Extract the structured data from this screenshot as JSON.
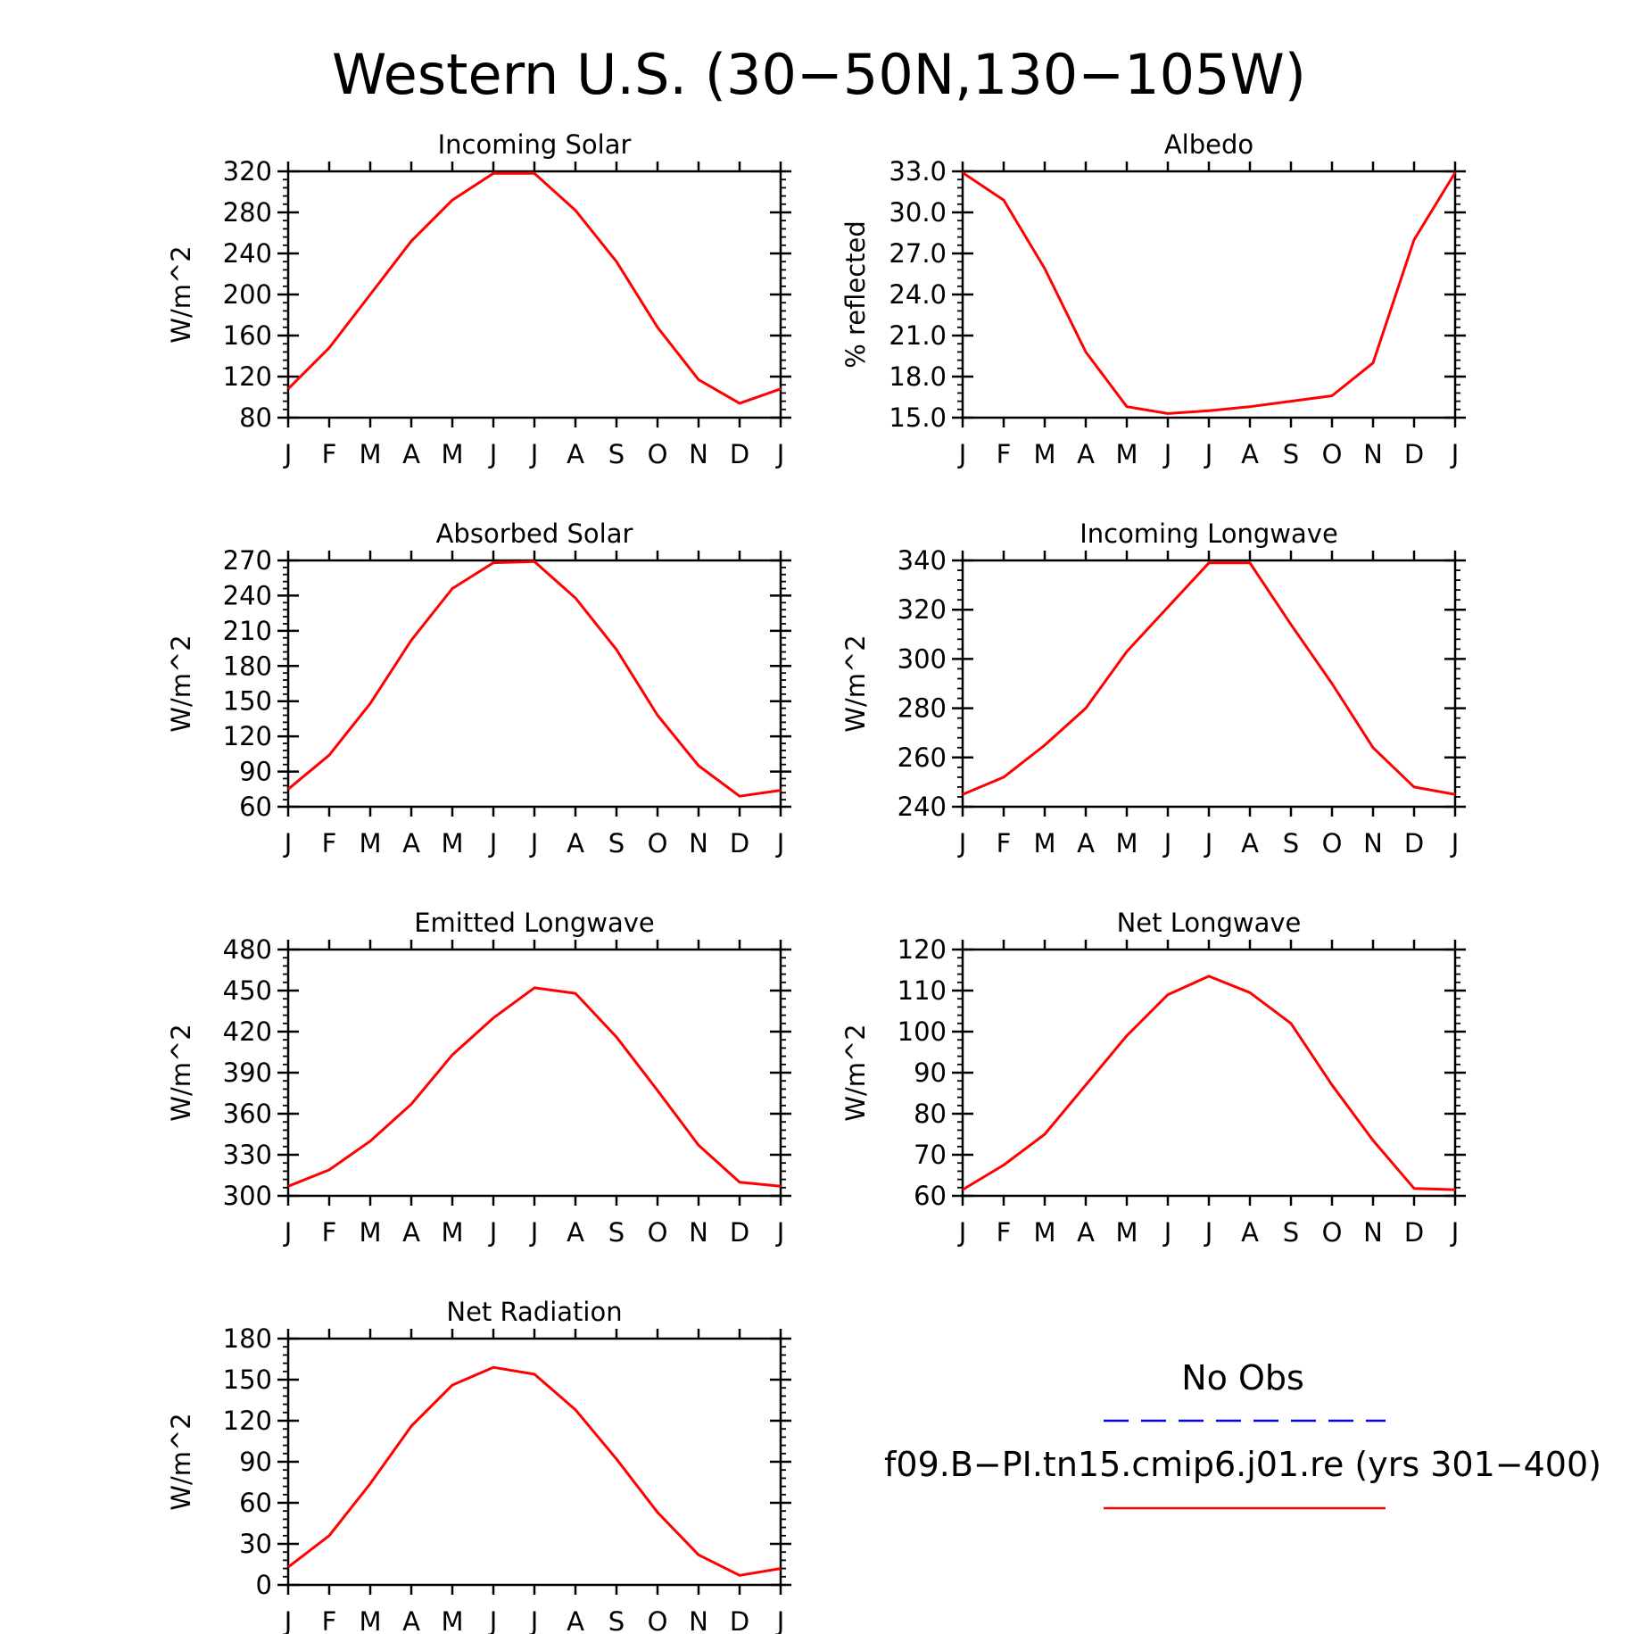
{
  "figure": {
    "title": "Western U.S. (30−50N,130−105W)"
  },
  "legend": {
    "entries": [
      {
        "label": "No Obs",
        "color": "#0000ff",
        "dashed": true
      },
      {
        "label": "f09.B−PI.tn15.cmip6.j01.re (yrs 301−400)",
        "color": "#ff0000",
        "dashed": false
      }
    ]
  },
  "chart_data": [
    {
      "type": "line",
      "title": "Incoming Solar",
      "ylabel": "W/m^2",
      "xlabel": "",
      "categories": [
        "J",
        "F",
        "M",
        "A",
        "M",
        "J",
        "J",
        "A",
        "S",
        "O",
        "N",
        "D",
        "J"
      ],
      "ylim": [
        80,
        320
      ],
      "yticks": [
        80,
        120,
        160,
        200,
        240,
        280,
        320
      ],
      "ytick_labels": [
        "80",
        "120",
        "160",
        "200",
        "240",
        "280",
        "320"
      ],
      "series": [
        {
          "color": "#ff0000",
          "values": [
            108,
            148,
            200,
            252,
            292,
            318,
            318,
            282,
            232,
            168,
            117,
            94,
            108
          ]
        }
      ],
      "grid": false
    },
    {
      "type": "line",
      "title": "Albedo",
      "ylabel": "% reflected",
      "xlabel": "",
      "categories": [
        "J",
        "F",
        "M",
        "A",
        "M",
        "J",
        "J",
        "A",
        "S",
        "O",
        "N",
        "D",
        "J"
      ],
      "ylim": [
        15,
        33
      ],
      "yticks": [
        15,
        18,
        21,
        24,
        27,
        30,
        33
      ],
      "ytick_labels": [
        "15.0",
        "18.0",
        "21.0",
        "24.0",
        "27.0",
        "30.0",
        "33.0"
      ],
      "series": [
        {
          "color": "#ff0000",
          "values": [
            32.9,
            30.9,
            25.9,
            19.8,
            15.8,
            15.3,
            15.5,
            15.8,
            16.2,
            16.6,
            19.0,
            28.0,
            32.9
          ]
        }
      ],
      "grid": false
    },
    {
      "type": "line",
      "title": "Absorbed Solar",
      "ylabel": "W/m^2",
      "xlabel": "",
      "categories": [
        "J",
        "F",
        "M",
        "A",
        "M",
        "J",
        "J",
        "A",
        "S",
        "O",
        "N",
        "D",
        "J"
      ],
      "ylim": [
        60,
        270
      ],
      "yticks": [
        60,
        90,
        120,
        150,
        180,
        210,
        240,
        270
      ],
      "ytick_labels": [
        "60",
        "90",
        "120",
        "150",
        "180",
        "210",
        "240",
        "270"
      ],
      "series": [
        {
          "color": "#ff0000",
          "values": [
            75,
            104,
            148,
            202,
            246,
            268,
            269,
            238,
            194,
            138,
            95,
            69,
            74
          ]
        }
      ],
      "grid": false
    },
    {
      "type": "line",
      "title": "Incoming Longwave",
      "ylabel": "W/m^2",
      "xlabel": "",
      "categories": [
        "J",
        "F",
        "M",
        "A",
        "M",
        "J",
        "J",
        "A",
        "S",
        "O",
        "N",
        "D",
        "J"
      ],
      "ylim": [
        240,
        340
      ],
      "yticks": [
        240,
        260,
        280,
        300,
        320,
        340
      ],
      "ytick_labels": [
        "240",
        "260",
        "280",
        "300",
        "320",
        "340"
      ],
      "series": [
        {
          "color": "#ff0000",
          "values": [
            245,
            252,
            265,
            280,
            303,
            321,
            339,
            339,
            314,
            290,
            264,
            248,
            245
          ]
        }
      ],
      "grid": false
    },
    {
      "type": "line",
      "title": "Emitted Longwave",
      "ylabel": "W/m^2",
      "xlabel": "",
      "categories": [
        "J",
        "F",
        "M",
        "A",
        "M",
        "J",
        "J",
        "A",
        "S",
        "O",
        "N",
        "D",
        "J"
      ],
      "ylim": [
        300,
        480
      ],
      "yticks": [
        300,
        330,
        360,
        390,
        420,
        450,
        480
      ],
      "ytick_labels": [
        "300",
        "330",
        "360",
        "390",
        "420",
        "450",
        "480"
      ],
      "series": [
        {
          "color": "#ff0000",
          "values": [
            307,
            319,
            340,
            367,
            403,
            430,
            452,
            448,
            416,
            377,
            337,
            310,
            307
          ]
        }
      ],
      "grid": false
    },
    {
      "type": "line",
      "title": "Net Longwave",
      "ylabel": "W/m^2",
      "xlabel": "",
      "categories": [
        "J",
        "F",
        "M",
        "A",
        "M",
        "J",
        "J",
        "A",
        "S",
        "O",
        "N",
        "D",
        "J"
      ],
      "ylim": [
        60,
        120
      ],
      "yticks": [
        60,
        70,
        80,
        90,
        100,
        110,
        120
      ],
      "ytick_labels": [
        "60",
        "70",
        "80",
        "90",
        "100",
        "110",
        "120"
      ],
      "series": [
        {
          "color": "#ff0000",
          "values": [
            61.5,
            67.5,
            75,
            87,
            99,
            109,
            113.5,
            109.5,
            102,
            87,
            73.5,
            61.8,
            61.5
          ]
        }
      ],
      "grid": false
    },
    {
      "type": "line",
      "title": "Net Radiation",
      "ylabel": "W/m^2",
      "xlabel": "",
      "categories": [
        "J",
        "F",
        "M",
        "A",
        "M",
        "J",
        "J",
        "A",
        "S",
        "O",
        "N",
        "D",
        "J"
      ],
      "ylim": [
        0,
        180
      ],
      "yticks": [
        0,
        30,
        60,
        90,
        120,
        150,
        180
      ],
      "ytick_labels": [
        "0",
        "30",
        "60",
        "90",
        "120",
        "150",
        "180"
      ],
      "series": [
        {
          "color": "#ff0000",
          "values": [
            13,
            36,
            74,
            116,
            146,
            159,
            154,
            128,
            92,
            53,
            22,
            7,
            12
          ]
        }
      ],
      "grid": false
    }
  ]
}
